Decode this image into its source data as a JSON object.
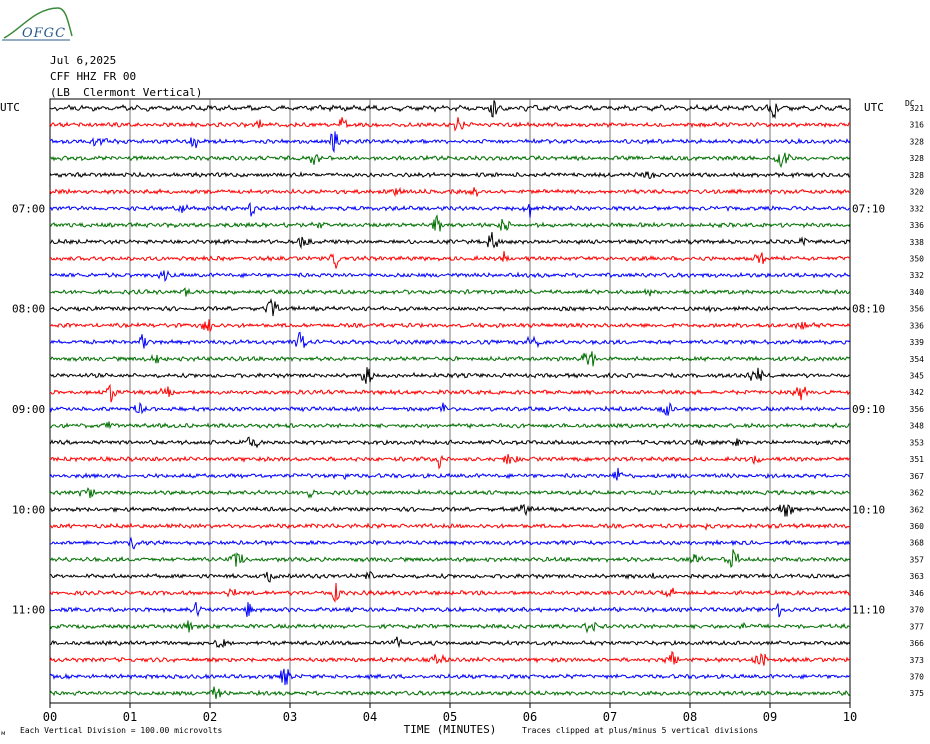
{
  "logo": {
    "text": "OFGC"
  },
  "header": {
    "date": "Jul 6,2025",
    "station": "CFF HHZ FR 00",
    "location": "(LB  Clermont Vertical)"
  },
  "colors": {
    "black": "#000000",
    "red": "#ff0000",
    "blue": "#0000ff",
    "green": "#007000",
    "grid": "#000000"
  },
  "chart_data": {
    "type": "line",
    "title": "",
    "xlabel": "TIME (MINUTES)",
    "ylabel": "",
    "x_range": [
      0,
      10
    ],
    "x_ticks": [
      "00",
      "01",
      "02",
      "03",
      "04",
      "05",
      "06",
      "07",
      "08",
      "09",
      "10"
    ],
    "left_axis_label": "UTC",
    "right_axis_label": "UTC",
    "right_column_header": "DC",
    "left_time_labels": [
      {
        "row": 6,
        "label": "07:00"
      },
      {
        "row": 12,
        "label": "08:00"
      },
      {
        "row": 18,
        "label": "09:00"
      },
      {
        "row": 24,
        "label": "10:00"
      },
      {
        "row": 30,
        "label": "11:00"
      }
    ],
    "right_time_labels": [
      {
        "row": 6,
        "label": "07:10"
      },
      {
        "row": 12,
        "label": "08:10"
      },
      {
        "row": 18,
        "label": "09:10"
      },
      {
        "row": 24,
        "label": "10:10"
      },
      {
        "row": 30,
        "label": "11:10"
      }
    ],
    "trace_colors": [
      "black",
      "red",
      "blue",
      "green"
    ],
    "dc_offsets": [
      321,
      316,
      328,
      328,
      328,
      320,
      332,
      336,
      338,
      350,
      332,
      340,
      356,
      336,
      339,
      354,
      345,
      342,
      356,
      348,
      353,
      351,
      367,
      362,
      362,
      360,
      368,
      357,
      363,
      346,
      370,
      377,
      366,
      373,
      370,
      375
    ],
    "footer_left": "Each Vertical Division =  100.00 microvolts",
    "footer_right": "Traces clipped at plus/minus 5 vertical divisions",
    "footer_mark": "ᴍ"
  }
}
